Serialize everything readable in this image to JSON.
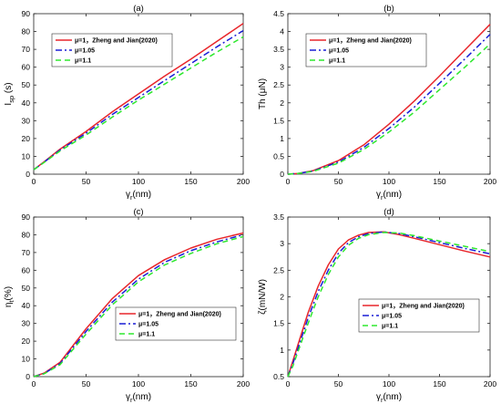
{
  "chart_data": [
    {
      "type": "line",
      "panel_label": "(a)",
      "xlabel": "γ_r(nm)",
      "ylabel": "I_sp (s)",
      "xlim": [
        0,
        200
      ],
      "ylim": [
        0,
        90
      ],
      "x_ticks": [
        0,
        50,
        100,
        150,
        200
      ],
      "y_ticks": [
        0,
        10,
        20,
        30,
        40,
        50,
        60,
        70,
        80,
        90
      ],
      "legend_position": "top-left",
      "grid": false,
      "x": [
        0,
        10,
        25,
        50,
        75,
        100,
        125,
        150,
        175,
        200
      ],
      "series": [
        {
          "name": "μ=1，Zheng and Jian(2020)",
          "color": "#e8262b",
          "dash": "solid",
          "values": [
            2.5,
            7,
            14,
            24,
            35,
            45,
            55,
            64.5,
            74.5,
            84.5
          ]
        },
        {
          "name": "μ=1.05",
          "color": "#1a1fd6",
          "dash": "dashdot",
          "values": [
            2.5,
            6.8,
            13.5,
            23,
            33.5,
            43,
            52.5,
            62,
            71.5,
            80.5
          ]
        },
        {
          "name": "μ=1.1",
          "color": "#2ee82e",
          "dash": "dashed",
          "values": [
            2.5,
            6.6,
            13,
            22,
            32,
            41.5,
            50.5,
            59.5,
            68.5,
            77
          ]
        }
      ]
    },
    {
      "type": "line",
      "panel_label": "(b)",
      "xlabel": "γ_r(nm)",
      "ylabel": "Th (μN)",
      "xlim": [
        0,
        200
      ],
      "ylim": [
        0,
        4.5
      ],
      "x_ticks": [
        0,
        50,
        100,
        150,
        200
      ],
      "y_ticks": [
        0,
        0.5,
        1,
        1.5,
        2,
        2.5,
        3,
        3.5,
        4,
        4.5
      ],
      "legend_position": "top-left",
      "grid": false,
      "x": [
        0,
        10,
        25,
        50,
        75,
        100,
        125,
        150,
        175,
        200
      ],
      "series": [
        {
          "name": "μ=1，Zheng and Jian(2020)",
          "color": "#e8262b",
          "dash": "solid",
          "values": [
            0,
            0.02,
            0.1,
            0.38,
            0.82,
            1.4,
            2.05,
            2.75,
            3.48,
            4.2
          ]
        },
        {
          "name": "μ=1.05",
          "color": "#1a1fd6",
          "dash": "dashdot",
          "values": [
            0,
            0.02,
            0.09,
            0.34,
            0.75,
            1.28,
            1.88,
            2.55,
            3.23,
            3.92
          ]
        },
        {
          "name": "μ=1.1",
          "color": "#2ee82e",
          "dash": "dashed",
          "values": [
            0,
            0.02,
            0.08,
            0.31,
            0.69,
            1.18,
            1.74,
            2.37,
            3.0,
            3.65
          ]
        }
      ]
    },
    {
      "type": "line",
      "panel_label": "(c)",
      "xlabel": "γ_r(nm)",
      "ylabel": "η_t(%)",
      "xlim": [
        0,
        200
      ],
      "ylim": [
        0,
        90
      ],
      "x_ticks": [
        0,
        50,
        100,
        150,
        200
      ],
      "y_ticks": [
        0,
        10,
        20,
        30,
        40,
        50,
        60,
        70,
        80,
        90
      ],
      "legend_position": "bottom-right",
      "grid": false,
      "x": [
        0,
        10,
        25,
        50,
        75,
        100,
        125,
        150,
        175,
        200
      ],
      "series": [
        {
          "name": "μ=1，Zheng and Jian(2020)",
          "color": "#e8262b",
          "dash": "solid",
          "values": [
            0,
            2,
            8,
            27,
            44,
            57,
            66,
            72.5,
            77.5,
            81
          ]
        },
        {
          "name": "μ=1.05",
          "color": "#1a1fd6",
          "dash": "dashdot",
          "values": [
            0,
            1.8,
            7.3,
            25.5,
            42,
            55,
            64.5,
            71,
            76,
            80
          ]
        },
        {
          "name": "μ=1.1",
          "color": "#2ee82e",
          "dash": "dashed",
          "values": [
            0,
            1.6,
            6.7,
            24,
            40.5,
            53.5,
            63,
            69.5,
            75,
            79
          ]
        }
      ]
    },
    {
      "type": "line",
      "panel_label": "(d)",
      "xlabel": "γ_r(nm)",
      "ylabel": "ζ(mN/W)",
      "xlim": [
        0,
        200
      ],
      "ylim": [
        0.5,
        3.5
      ],
      "x_ticks": [
        0,
        50,
        100,
        150,
        200
      ],
      "y_ticks": [
        0.5,
        1,
        1.5,
        2,
        2.5,
        3,
        3.5
      ],
      "legend_position": "center-right",
      "grid": false,
      "x": [
        0,
        5,
        10,
        20,
        30,
        40,
        50,
        60,
        70,
        80,
        95,
        110,
        125,
        150,
        175,
        200
      ],
      "series": [
        {
          "name": "μ=1，Zheng and Jian(2020)",
          "color": "#e8262b",
          "dash": "solid",
          "values": [
            0.5,
            0.8,
            1.1,
            1.7,
            2.2,
            2.6,
            2.9,
            3.07,
            3.16,
            3.21,
            3.22,
            3.17,
            3.1,
            2.98,
            2.86,
            2.75
          ]
        },
        {
          "name": "μ=1.05",
          "color": "#1a1fd6",
          "dash": "dashdot",
          "values": [
            0.5,
            0.75,
            1.03,
            1.6,
            2.1,
            2.5,
            2.82,
            3.02,
            3.13,
            3.19,
            3.22,
            3.19,
            3.13,
            3.02,
            2.91,
            2.81
          ]
        },
        {
          "name": "μ=1.1",
          "color": "#2ee82e",
          "dash": "dashed",
          "values": [
            0.5,
            0.7,
            0.97,
            1.5,
            2.0,
            2.42,
            2.75,
            2.97,
            3.1,
            3.17,
            3.21,
            3.2,
            3.15,
            3.05,
            2.95,
            2.85
          ]
        }
      ]
    }
  ]
}
